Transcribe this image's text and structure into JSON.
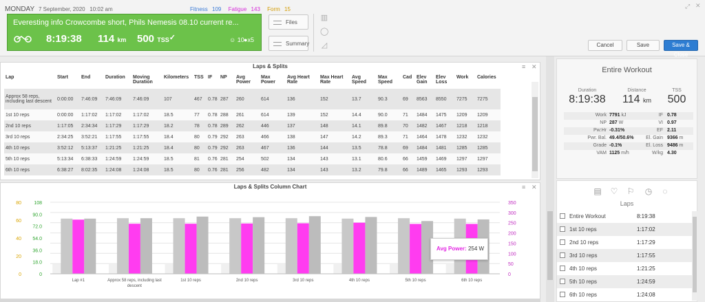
{
  "header": {
    "day": "MONDAY",
    "date": "7 September, 2020",
    "time": "10:02 am",
    "fitness_label": "Fitness",
    "fitness_value": "109",
    "fatigue_label": "Fatigue",
    "fatigue_value": "143",
    "form_label": "Form",
    "form_value": "15",
    "workout_title": "Everesting info Crowcombe short, Phils Nemesis 08.10 current re...",
    "duration": "8:19:38",
    "distance": "114",
    "distance_unit": "km",
    "tss": "500",
    "tss_unit": "TSS",
    "smile_count": "10",
    "comment_count": "x5",
    "files_label": "Files",
    "summary_label": "Summary",
    "cancel_label": "Cancel",
    "save_label": "Save",
    "save_close_label": "Save & Close",
    "colors": {
      "fitness": "#3b7bd6",
      "fatigue": "#d52ad8",
      "form": "#d39b00",
      "workout": "#6cc24a"
    }
  },
  "laps_table": {
    "title": "Laps & Splits",
    "columns": [
      "Lap",
      "Start",
      "End",
      "Duration",
      "Moving Duration",
      "Kilometers",
      "TSS",
      "IF",
      "NP",
      "Avg Power",
      "Max Power",
      "Avg Heart Rate",
      "Max Heart Rate",
      "Avg Speed",
      "Max Speed",
      "Cad",
      "Elev Gain",
      "Elev Loss",
      "Work",
      "Calories"
    ],
    "rows": [
      [
        "Approx 58 reps, including last descent",
        "0:00:00",
        "7:46:09",
        "7:46:09",
        "7:46:09",
        "107",
        "467",
        "0.78",
        "287",
        "260",
        "614",
        "136",
        "152",
        "13.7",
        "90.3",
        "69",
        "8563",
        "8550",
        "7275",
        "7275"
      ],
      [
        "1st 10 reps",
        "0:00:00",
        "1:17:02",
        "1:17:02",
        "1:17:02",
        "18.5",
        "77",
        "0.78",
        "288",
        "261",
        "614",
        "139",
        "152",
        "14.4",
        "90.0",
        "71",
        "1484",
        "1475",
        "1209",
        "1209"
      ],
      [
        "2nd 10 reps",
        "1:17:05",
        "2:34:34",
        "1:17:29",
        "1:17:29",
        "18.2",
        "78",
        "0.78",
        "289",
        "262",
        "446",
        "137",
        "148",
        "14.1",
        "89.8",
        "70",
        "1482",
        "1467",
        "1218",
        "1218"
      ],
      [
        "3rd 10 reps",
        "2:34:25",
        "3:52:21",
        "1:17:55",
        "1:17:55",
        "18.4",
        "80",
        "0.79",
        "292",
        "263",
        "466",
        "138",
        "147",
        "14.2",
        "89.3",
        "71",
        "1464",
        "1478",
        "1232",
        "1232"
      ],
      [
        "4th 10 reps",
        "3:52:12",
        "5:13:37",
        "1:21:25",
        "1:21:25",
        "18.4",
        "80",
        "0.79",
        "292",
        "263",
        "467",
        "136",
        "144",
        "13.5",
        "78.8",
        "69",
        "1484",
        "1481",
        "1285",
        "1285"
      ],
      [
        "5th 10 reps",
        "5:13:34",
        "6:38:33",
        "1:24:59",
        "1:24:59",
        "18.5",
        "81",
        "0.76",
        "281",
        "254",
        "502",
        "134",
        "143",
        "13.1",
        "80.6",
        "66",
        "1459",
        "1469",
        "1297",
        "1297"
      ],
      [
        "6th 10 reps",
        "6:38:27",
        "8:02:35",
        "1:24:08",
        "1:24:08",
        "18.5",
        "80",
        "0.76",
        "281",
        "256",
        "482",
        "134",
        "143",
        "13.2",
        "79.8",
        "66",
        "1489",
        "1465",
        "1293",
        "1293"
      ]
    ]
  },
  "chart_data": {
    "type": "bar",
    "title": "Laps & Splits Column Chart",
    "categories": [
      "Lap #1",
      "Approx 58 reps, including last descent",
      "1st 10 reps",
      "2nd 10 reps",
      "3rd 10 reps",
      "4th 10 reps",
      "5th 10 reps",
      "6th 10 reps"
    ],
    "y_left_outer_ticks": [
      "0",
      "20",
      "40",
      "60",
      "80"
    ],
    "y_left_inner_ticks": [
      "0",
      "18.0",
      "36.0",
      "54.0",
      "72.0",
      "90.0",
      "108"
    ],
    "y_right_ticks": [
      "0",
      "50",
      "100",
      "150",
      "200",
      "250",
      "300",
      "350"
    ],
    "ylim_right": [
      0,
      350
    ],
    "series": [
      {
        "color": "#f0f0f0",
        "values": [
          48,
          47,
          47,
          47,
          47,
          47,
          47,
          47
        ]
      },
      {
        "color": "#c8c8c8",
        "values": [
          270,
          272,
          272,
          272,
          272,
          270,
          272,
          270
        ]
      },
      {
        "color": "#ff3cf0",
        "values": [
          265,
          245,
          245,
          246,
          247,
          250,
          244,
          244
        ]
      },
      {
        "color": "#bcbcbc",
        "values": [
          270,
          272,
          280,
          277,
          282,
          278,
          258,
          266
        ]
      }
    ],
    "tooltip_label": "Avg Power:",
    "tooltip_value": "254 W",
    "colors": {
      "left_outer": "#d9a400",
      "left_inner": "#2fa52f",
      "right": "#c02cc0"
    }
  },
  "summary": {
    "title": "Entire Workout",
    "duration_label": "Duration",
    "duration": "8:19:38",
    "distance_label": "Distance",
    "distance": "114",
    "distance_unit": "km",
    "tss_label": "TSS",
    "tss": "500",
    "rows": [
      {
        "l1": "Work",
        "v1": "7791",
        "u1": "kJ",
        "l2": "IF",
        "v2": "0.78",
        "u2": ""
      },
      {
        "l1": "NP",
        "v1": "287",
        "u1": "W",
        "l2": "VI",
        "v2": "0.97",
        "u2": ""
      },
      {
        "l1": "Pw:Hr",
        "v1": "-0.31%",
        "u1": "",
        "l2": "EF",
        "v2": "2.11",
        "u2": ""
      },
      {
        "l1": "Pwr. Bal.",
        "v1": "49.4/50.6%",
        "u1": "",
        "l2": "El. Gain",
        "v2": "9366",
        "u2": "m"
      },
      {
        "l1": "Grade",
        "v1": "-0.1%",
        "u1": "",
        "l2": "El. Loss",
        "v2": "9486",
        "u2": "m"
      },
      {
        "l1": "VAM",
        "v1": "1125",
        "u1": "m/h",
        "l2": "W/kg",
        "v2": "4.30",
        "u2": ""
      }
    ]
  },
  "side_laps": {
    "title": "Laps",
    "items": [
      {
        "name": "Entire Workout",
        "time": "8:19:38"
      },
      {
        "name": "1st 10 reps",
        "time": "1:17:02"
      },
      {
        "name": "2nd 10 reps",
        "time": "1:17:29"
      },
      {
        "name": "3rd 10 reps",
        "time": "1:17:55"
      },
      {
        "name": "4th 10 reps",
        "time": "1:21:25"
      },
      {
        "name": "5th 10 reps",
        "time": "1:24:59"
      },
      {
        "name": "6th 10 reps",
        "time": "1:24:08"
      }
    ]
  }
}
